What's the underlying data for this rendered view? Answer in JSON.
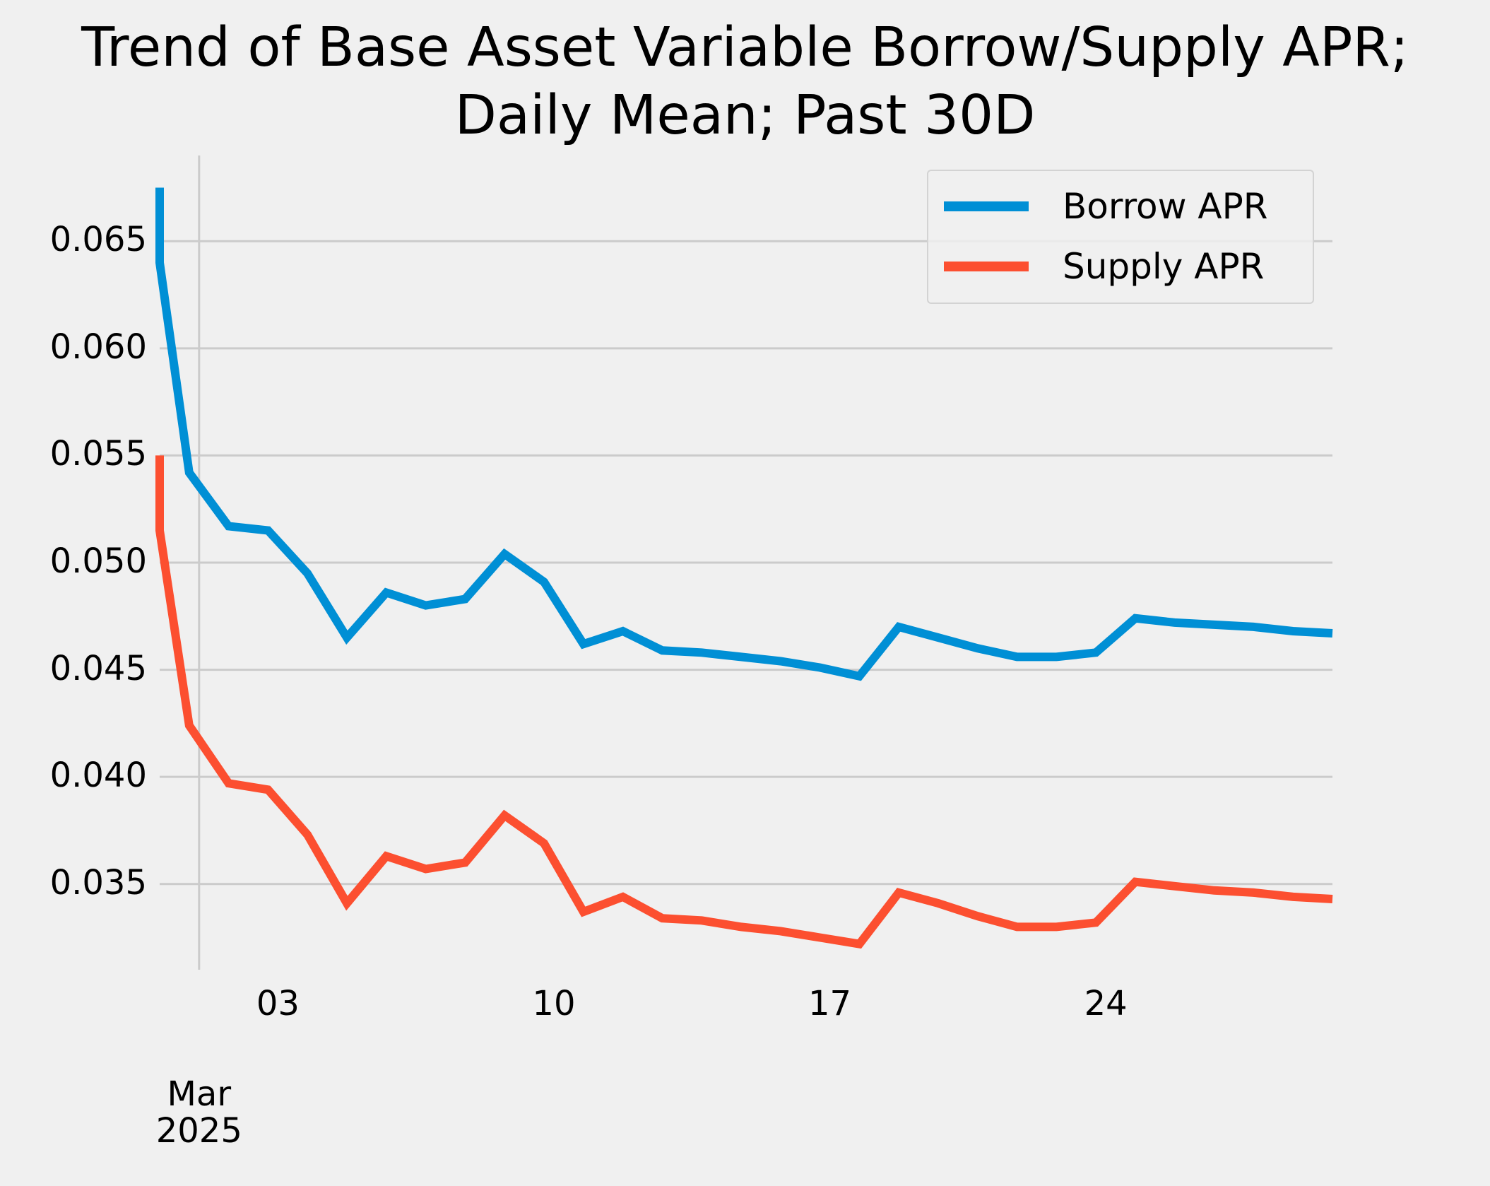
{
  "chart_data": {
    "type": "line",
    "title_lines": [
      "Trend of Base Asset Variable Borrow/Supply APR;",
      "Daily Mean; Past 30D"
    ],
    "xlabel": "",
    "ylabel": "",
    "x_start_label": "2025-02-28",
    "x_tick_labels": [
      "03",
      "10",
      "17",
      "24"
    ],
    "x_tick_days": [
      3,
      10,
      17,
      24
    ],
    "x_month_label": [
      "Mar",
      "2025"
    ],
    "y_tick_labels": [
      "0.035",
      "0.040",
      "0.045",
      "0.050",
      "0.055",
      "0.060",
      "0.065"
    ],
    "y_ticks": [
      0.035,
      0.04,
      0.045,
      0.05,
      0.055,
      0.06,
      0.065
    ],
    "ylim": [
      0.031,
      0.069
    ],
    "grid": true,
    "legend_position": "top-right",
    "x": [
      "2025-02-28T00:00",
      "2025-02-28T00:00",
      "2025-02-28T18:00",
      "2025-03-01T18:00",
      "2025-03-02T18:00",
      "2025-03-03T18:00",
      "2025-03-04T18:00",
      "2025-03-05T18:00",
      "2025-03-06T18:00",
      "2025-03-07T18:00",
      "2025-03-08T18:00",
      "2025-03-09T18:00",
      "2025-03-10T18:00",
      "2025-03-11T18:00",
      "2025-03-12T18:00",
      "2025-03-13T18:00",
      "2025-03-14T18:00",
      "2025-03-15T18:00",
      "2025-03-16T18:00",
      "2025-03-17T18:00",
      "2025-03-18T18:00",
      "2025-03-19T18:00",
      "2025-03-20T18:00",
      "2025-03-21T18:00",
      "2025-03-22T18:00",
      "2025-03-23T18:00",
      "2025-03-24T18:00",
      "2025-03-25T18:00",
      "2025-03-26T18:00",
      "2025-03-27T18:00",
      "2025-03-28T18:00",
      "2025-03-29T18:00"
    ],
    "series": [
      {
        "name": "Borrow APR",
        "color": "#008fd5",
        "values": [
          0.0675,
          0.064,
          0.0542,
          0.0517,
          0.0515,
          0.0495,
          0.0465,
          0.0486,
          0.048,
          0.0483,
          0.0504,
          0.0491,
          0.0462,
          0.0468,
          0.0459,
          0.0458,
          0.0456,
          0.0454,
          0.0451,
          0.0447,
          0.047,
          0.0465,
          0.046,
          0.0456,
          0.0456,
          0.0458,
          0.0474,
          0.0472,
          0.0471,
          0.047,
          0.0468,
          0.0467
        ]
      },
      {
        "name": "Supply APR",
        "color": "#fc4f30",
        "values": [
          0.055,
          0.0515,
          0.0424,
          0.0397,
          0.0394,
          0.0373,
          0.0341,
          0.0363,
          0.0357,
          0.036,
          0.0382,
          0.0369,
          0.0337,
          0.0344,
          0.0334,
          0.0333,
          0.033,
          0.0328,
          0.0325,
          0.0322,
          0.0346,
          0.0341,
          0.0335,
          0.033,
          0.033,
          0.0332,
          0.0351,
          0.0349,
          0.0347,
          0.0346,
          0.0344,
          0.0343
        ]
      }
    ]
  }
}
